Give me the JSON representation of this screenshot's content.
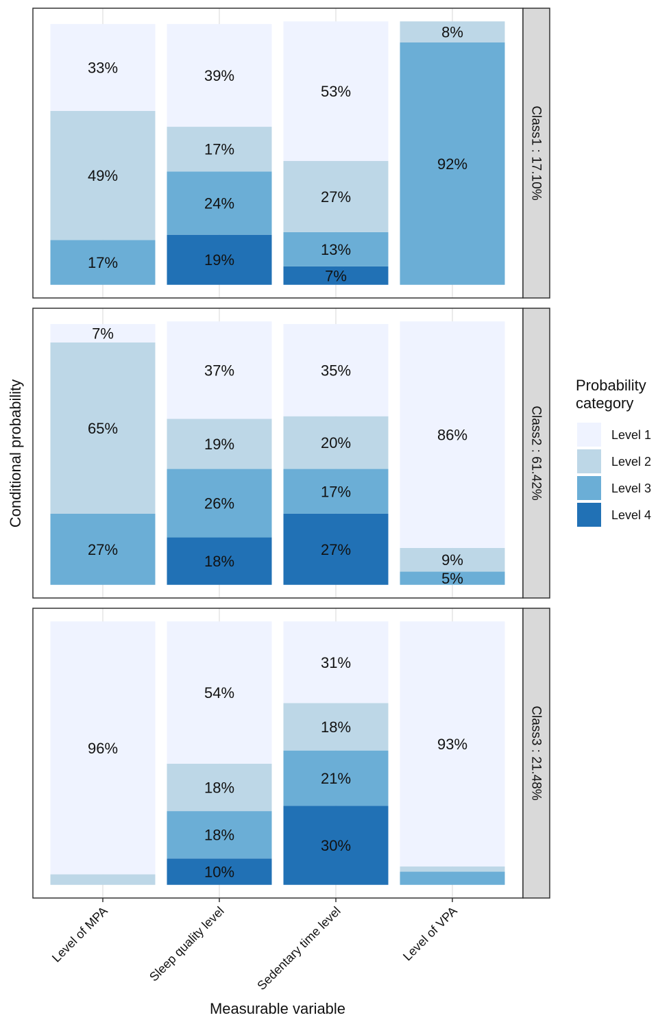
{
  "chart_data": {
    "type": "bar",
    "stacked": true,
    "x_label": "Measurable variable",
    "y_label": "Conditional probability",
    "legend_title": "Probability category",
    "ylim": [
      -5,
      105
    ],
    "categories": [
      "Level of MPA",
      "Sleep quality level",
      "Sedentary time level",
      "Level of VPA"
    ],
    "facets": [
      {
        "label": "Class1 : 17.10%",
        "series": [
          {
            "name": "Level 1",
            "color": "#eff3ff",
            "values": [
              33,
              39,
              53,
              0
            ],
            "value_labels": [
              "33%",
              "39%",
              "53%",
              null
            ]
          },
          {
            "name": "Level 2",
            "color": "#bdd7e7",
            "values": [
              49,
              17,
              27,
              8
            ],
            "value_labels": [
              "49%",
              "17%",
              "27%",
              "8%"
            ]
          },
          {
            "name": "Level 3",
            "color": "#6baed6",
            "values": [
              17,
              24,
              13,
              92
            ],
            "value_labels": [
              "17%",
              "24%",
              "13%",
              "92%"
            ]
          },
          {
            "name": "Level 4",
            "color": "#2171b5",
            "values": [
              0,
              19,
              7,
              0
            ],
            "value_labels": [
              null,
              "19%",
              "7%",
              null
            ]
          }
        ]
      },
      {
        "label": "Class2 : 61.42%",
        "series": [
          {
            "name": "Level 1",
            "color": "#eff3ff",
            "values": [
              7,
              37,
              35,
              86
            ],
            "value_labels": [
              "7%",
              "37%",
              "35%",
              "86%"
            ]
          },
          {
            "name": "Level 2",
            "color": "#bdd7e7",
            "values": [
              65,
              19,
              20,
              9
            ],
            "value_labels": [
              "65%",
              "19%",
              "20%",
              "9%"
            ]
          },
          {
            "name": "Level 3",
            "color": "#6baed6",
            "values": [
              27,
              26,
              17,
              5
            ],
            "value_labels": [
              "27%",
              "26%",
              "17%",
              "5%"
            ]
          },
          {
            "name": "Level 4",
            "color": "#2171b5",
            "values": [
              0,
              18,
              27,
              0
            ],
            "value_labels": [
              null,
              "18%",
              "27%",
              null
            ]
          }
        ]
      },
      {
        "label": "Class3 : 21.48%",
        "series": [
          {
            "name": "Level 1",
            "color": "#eff3ff",
            "values": [
              96,
              54,
              31,
              93
            ],
            "value_labels": [
              "96%",
              "54%",
              "31%",
              "93%"
            ]
          },
          {
            "name": "Level 2",
            "color": "#bdd7e7",
            "values": [
              4,
              18,
              18,
              2
            ],
            "value_labels": [
              null,
              "18%",
              "18%",
              null
            ]
          },
          {
            "name": "Level 3",
            "color": "#6baed6",
            "values": [
              0,
              18,
              21,
              5
            ],
            "value_labels": [
              null,
              "18%",
              "21%",
              null
            ]
          },
          {
            "name": "Level 4",
            "color": "#2171b5",
            "values": [
              0,
              10,
              30,
              0
            ],
            "value_labels": [
              null,
              "10%",
              "30%",
              null
            ]
          }
        ]
      }
    ]
  }
}
